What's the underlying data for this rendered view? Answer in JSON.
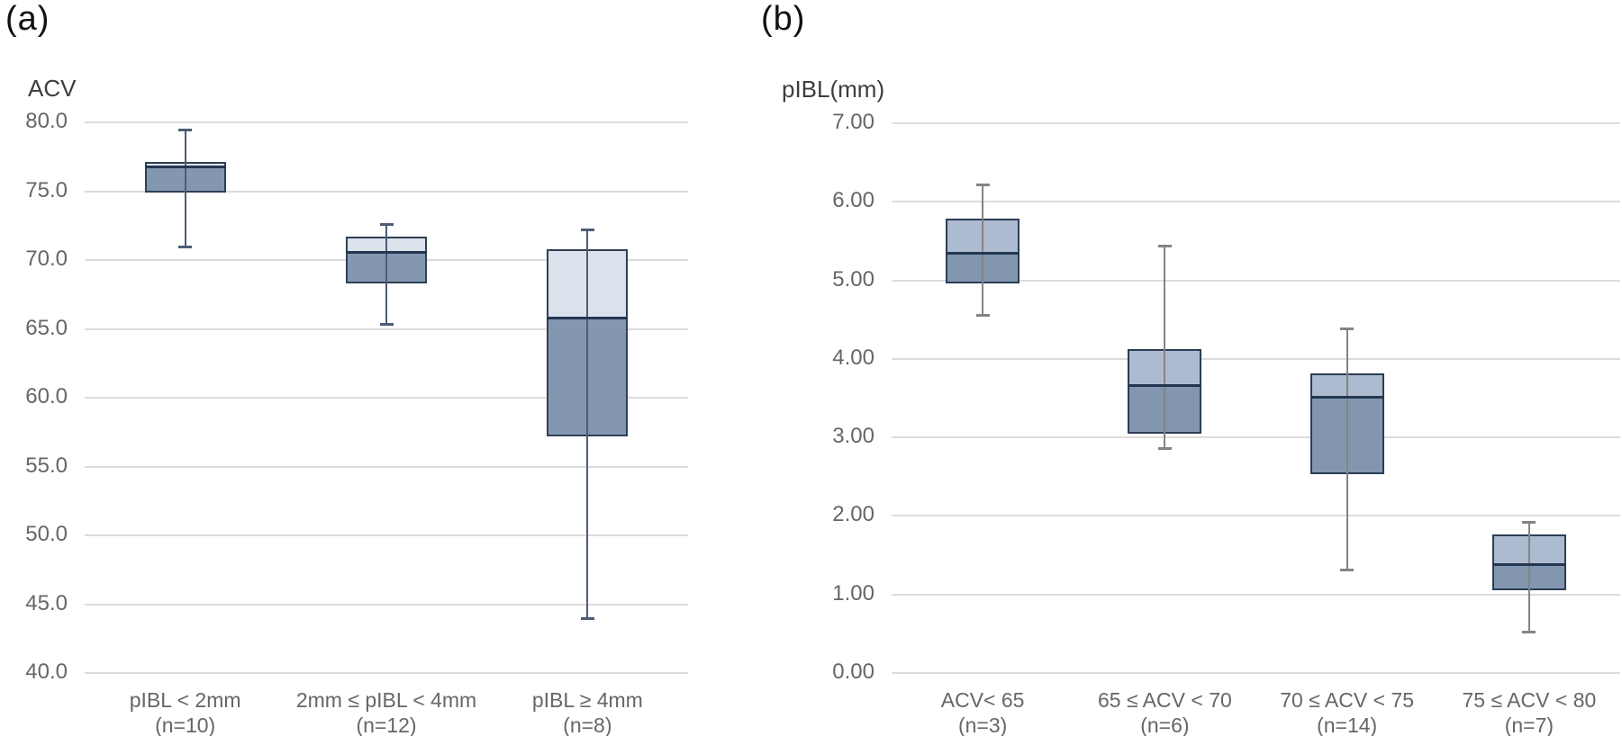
{
  "figure": {
    "background": "#ffffff",
    "gridline_color": "#dcdcdc",
    "tick_label_color": "#666666",
    "axis_title_color": "#3d3d3d",
    "panel_label_color": "#111111"
  },
  "chart_data": [
    {
      "type": "box",
      "panel": "(a)",
      "ylabel": "ACV",
      "xlabel": "",
      "ylim": [
        40.0,
        80.0
      ],
      "ytick_step": 5.0,
      "grid": true,
      "legend": "none",
      "yticks": [
        {
          "value": 80.0,
          "label": "80.0"
        },
        {
          "value": 75.0,
          "label": "75.0"
        },
        {
          "value": 70.0,
          "label": "70.0"
        },
        {
          "value": 65.0,
          "label": "65.0"
        },
        {
          "value": 60.0,
          "label": "60.0"
        },
        {
          "value": 55.0,
          "label": "55.0"
        },
        {
          "value": 50.0,
          "label": "50.0"
        },
        {
          "value": 45.0,
          "label": "45.0"
        },
        {
          "value": 40.0,
          "label": "40.0"
        }
      ],
      "series": [
        {
          "category": "pIBL < 2mm",
          "n_label": "(n=10)",
          "whisker_low": 70.9,
          "q1": 74.9,
          "median": 76.8,
          "q3": 77.1,
          "whisker_high": 79.5
        },
        {
          "category": "2mm ≤ pIBL < 4mm",
          "n_label": "(n=12)",
          "whisker_low": 65.3,
          "q1": 68.3,
          "median": 70.6,
          "q3": 71.7,
          "whisker_high": 72.6
        },
        {
          "category": "pIBL ≥ 4mm",
          "n_label": "(n=8)",
          "whisker_low": 43.9,
          "q1": 57.2,
          "median": 65.8,
          "q3": 70.8,
          "whisker_high": 72.2
        }
      ],
      "colors": {
        "box_upper_fill": "#dbe2ec",
        "box_lower_fill": "#8497b1",
        "box_border": "#2f4054",
        "whisker": "#4c5d76",
        "median": "#233750"
      }
    },
    {
      "type": "box",
      "panel": "(b)",
      "ylabel": "pIBL(mm)",
      "xlabel": "",
      "ylim": [
        0.0,
        7.0
      ],
      "ytick_step": 1.0,
      "grid": true,
      "legend": "none",
      "yticks": [
        {
          "value": 7.0,
          "label": "7.00"
        },
        {
          "value": 6.0,
          "label": "6.00"
        },
        {
          "value": 5.0,
          "label": "5.00"
        },
        {
          "value": 4.0,
          "label": "4.00"
        },
        {
          "value": 3.0,
          "label": "3.00"
        },
        {
          "value": 2.0,
          "label": "2.00"
        },
        {
          "value": 1.0,
          "label": "1.00"
        },
        {
          "value": 0.0,
          "label": "0.00"
        }
      ],
      "series": [
        {
          "category": "ACV< 65",
          "n_label": "(n=3)",
          "whisker_low": 4.55,
          "q1": 4.96,
          "median": 5.35,
          "q3": 5.78,
          "whisker_high": 6.22
        },
        {
          "category": "65 ≤ ACV < 70",
          "n_label": "(n=6)",
          "whisker_low": 2.85,
          "q1": 3.05,
          "median": 3.67,
          "q3": 4.13,
          "whisker_high": 5.44
        },
        {
          "category": "70 ≤ ACV < 75",
          "n_label": "(n=14)",
          "whisker_low": 1.31,
          "q1": 2.53,
          "median": 3.52,
          "q3": 3.82,
          "whisker_high": 4.39
        },
        {
          "category": "75 ≤ ACV < 80",
          "n_label": "(n=7)",
          "whisker_low": 0.51,
          "q1": 1.05,
          "median": 1.39,
          "q3": 1.77,
          "whisker_high": 1.92
        }
      ],
      "colors": {
        "box_upper_fill": "#adbbd1",
        "box_lower_fill": "#8296b0",
        "box_border": "#2c3c55",
        "whisker": "#848484",
        "median": "#233750"
      }
    }
  ]
}
